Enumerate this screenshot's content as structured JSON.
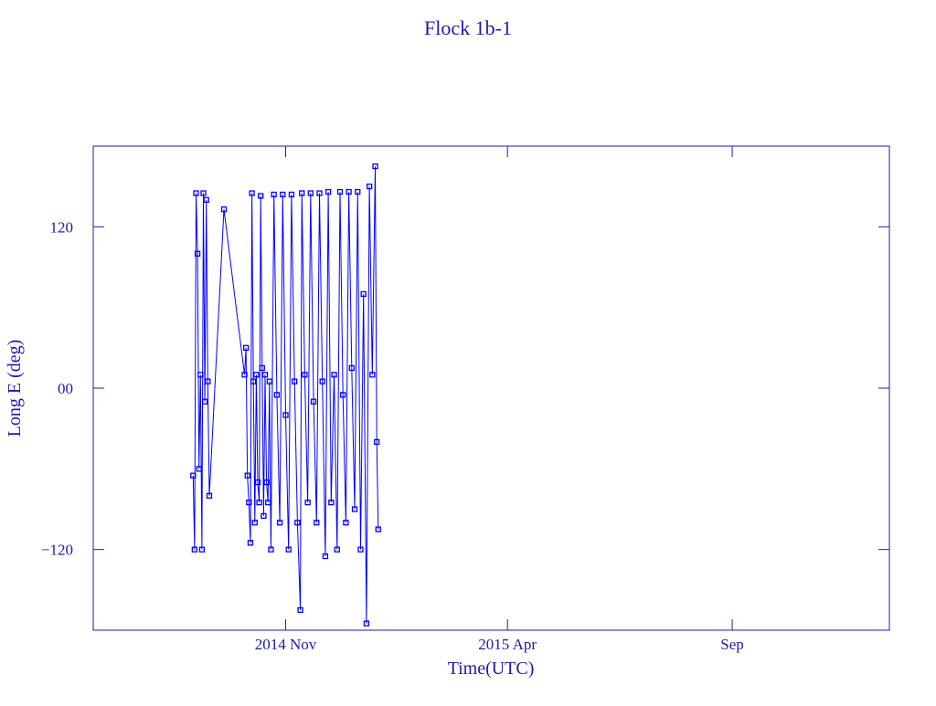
{
  "chart_data": {
    "type": "line",
    "title": "Flock 1b-1",
    "xlabel": "Time(UTC)",
    "ylabel": "Long E (deg)",
    "color": "#0000ff",
    "xlim": [
      "2014-06-23",
      "2015-12-17"
    ],
    "xticks": [
      {
        "value": "2014-11",
        "label": "2014 Nov"
      },
      {
        "value": "2015-04",
        "label": "2015 Apr"
      },
      {
        "value": "2015-09",
        "label": "Sep"
      }
    ],
    "ylim": [
      -180,
      180
    ],
    "yticks": [
      {
        "value": -120,
        "label": "−120"
      },
      {
        "value": 0,
        "label": "00"
      },
      120
    ],
    "x": [
      "2014-08-30",
      "2014-08-31",
      "2014-09-01",
      "2014-09-02",
      "2014-09-03",
      "2014-09-04",
      "2014-09-05",
      "2014-09-06",
      "2014-09-07",
      "2014-09-08",
      "2014-09-09",
      "2014-09-10",
      "2014-09-20",
      "2014-10-04",
      "2014-10-05",
      "2014-10-06",
      "2014-10-07",
      "2014-10-08",
      "2014-10-09",
      "2014-10-10",
      "2014-10-11",
      "2014-10-12",
      "2014-10-13",
      "2014-10-14",
      "2014-10-15",
      "2014-10-16",
      "2014-10-17",
      "2014-10-18",
      "2014-10-19",
      "2014-10-20",
      "2014-10-21",
      "2014-10-22",
      "2014-10-24",
      "2014-10-26",
      "2014-10-28",
      "2014-10-30",
      "2014-11-01",
      "2014-11-03",
      "2014-11-05",
      "2014-11-07",
      "2014-11-09",
      "2014-11-11",
      "2014-11-12",
      "2014-11-14",
      "2014-11-16",
      "2014-11-18",
      "2014-11-20",
      "2014-11-22",
      "2014-11-24",
      "2014-11-26",
      "2014-11-28",
      "2014-11-30",
      "2014-12-02",
      "2014-12-04",
      "2014-12-06",
      "2014-12-08",
      "2014-12-10",
      "2014-12-12",
      "2014-12-14",
      "2014-12-16",
      "2014-12-18",
      "2014-12-20",
      "2014-12-22",
      "2014-12-24",
      "2014-12-26",
      "2014-12-28",
      "2014-12-30",
      "2015-01-01",
      "2015-01-02",
      "2015-01-03"
    ],
    "values": [
      -65,
      -120,
      145,
      100,
      -60,
      10,
      -120,
      145,
      -10,
      140,
      5,
      -80,
      133,
      10,
      30,
      -65,
      -85,
      -115,
      145,
      5,
      -100,
      10,
      -70,
      -85,
      143,
      15,
      -95,
      10,
      -70,
      -85,
      5,
      -120,
      144,
      -5,
      -100,
      144,
      -20,
      -120,
      144,
      5,
      -100,
      -165,
      145,
      10,
      -85,
      145,
      -10,
      -100,
      145,
      5,
      -125,
      146,
      -85,
      10,
      -120,
      146,
      -5,
      -100,
      146,
      15,
      -90,
      146,
      -120,
      70,
      -175,
      150,
      10,
      165,
      -40,
      -105
    ]
  }
}
